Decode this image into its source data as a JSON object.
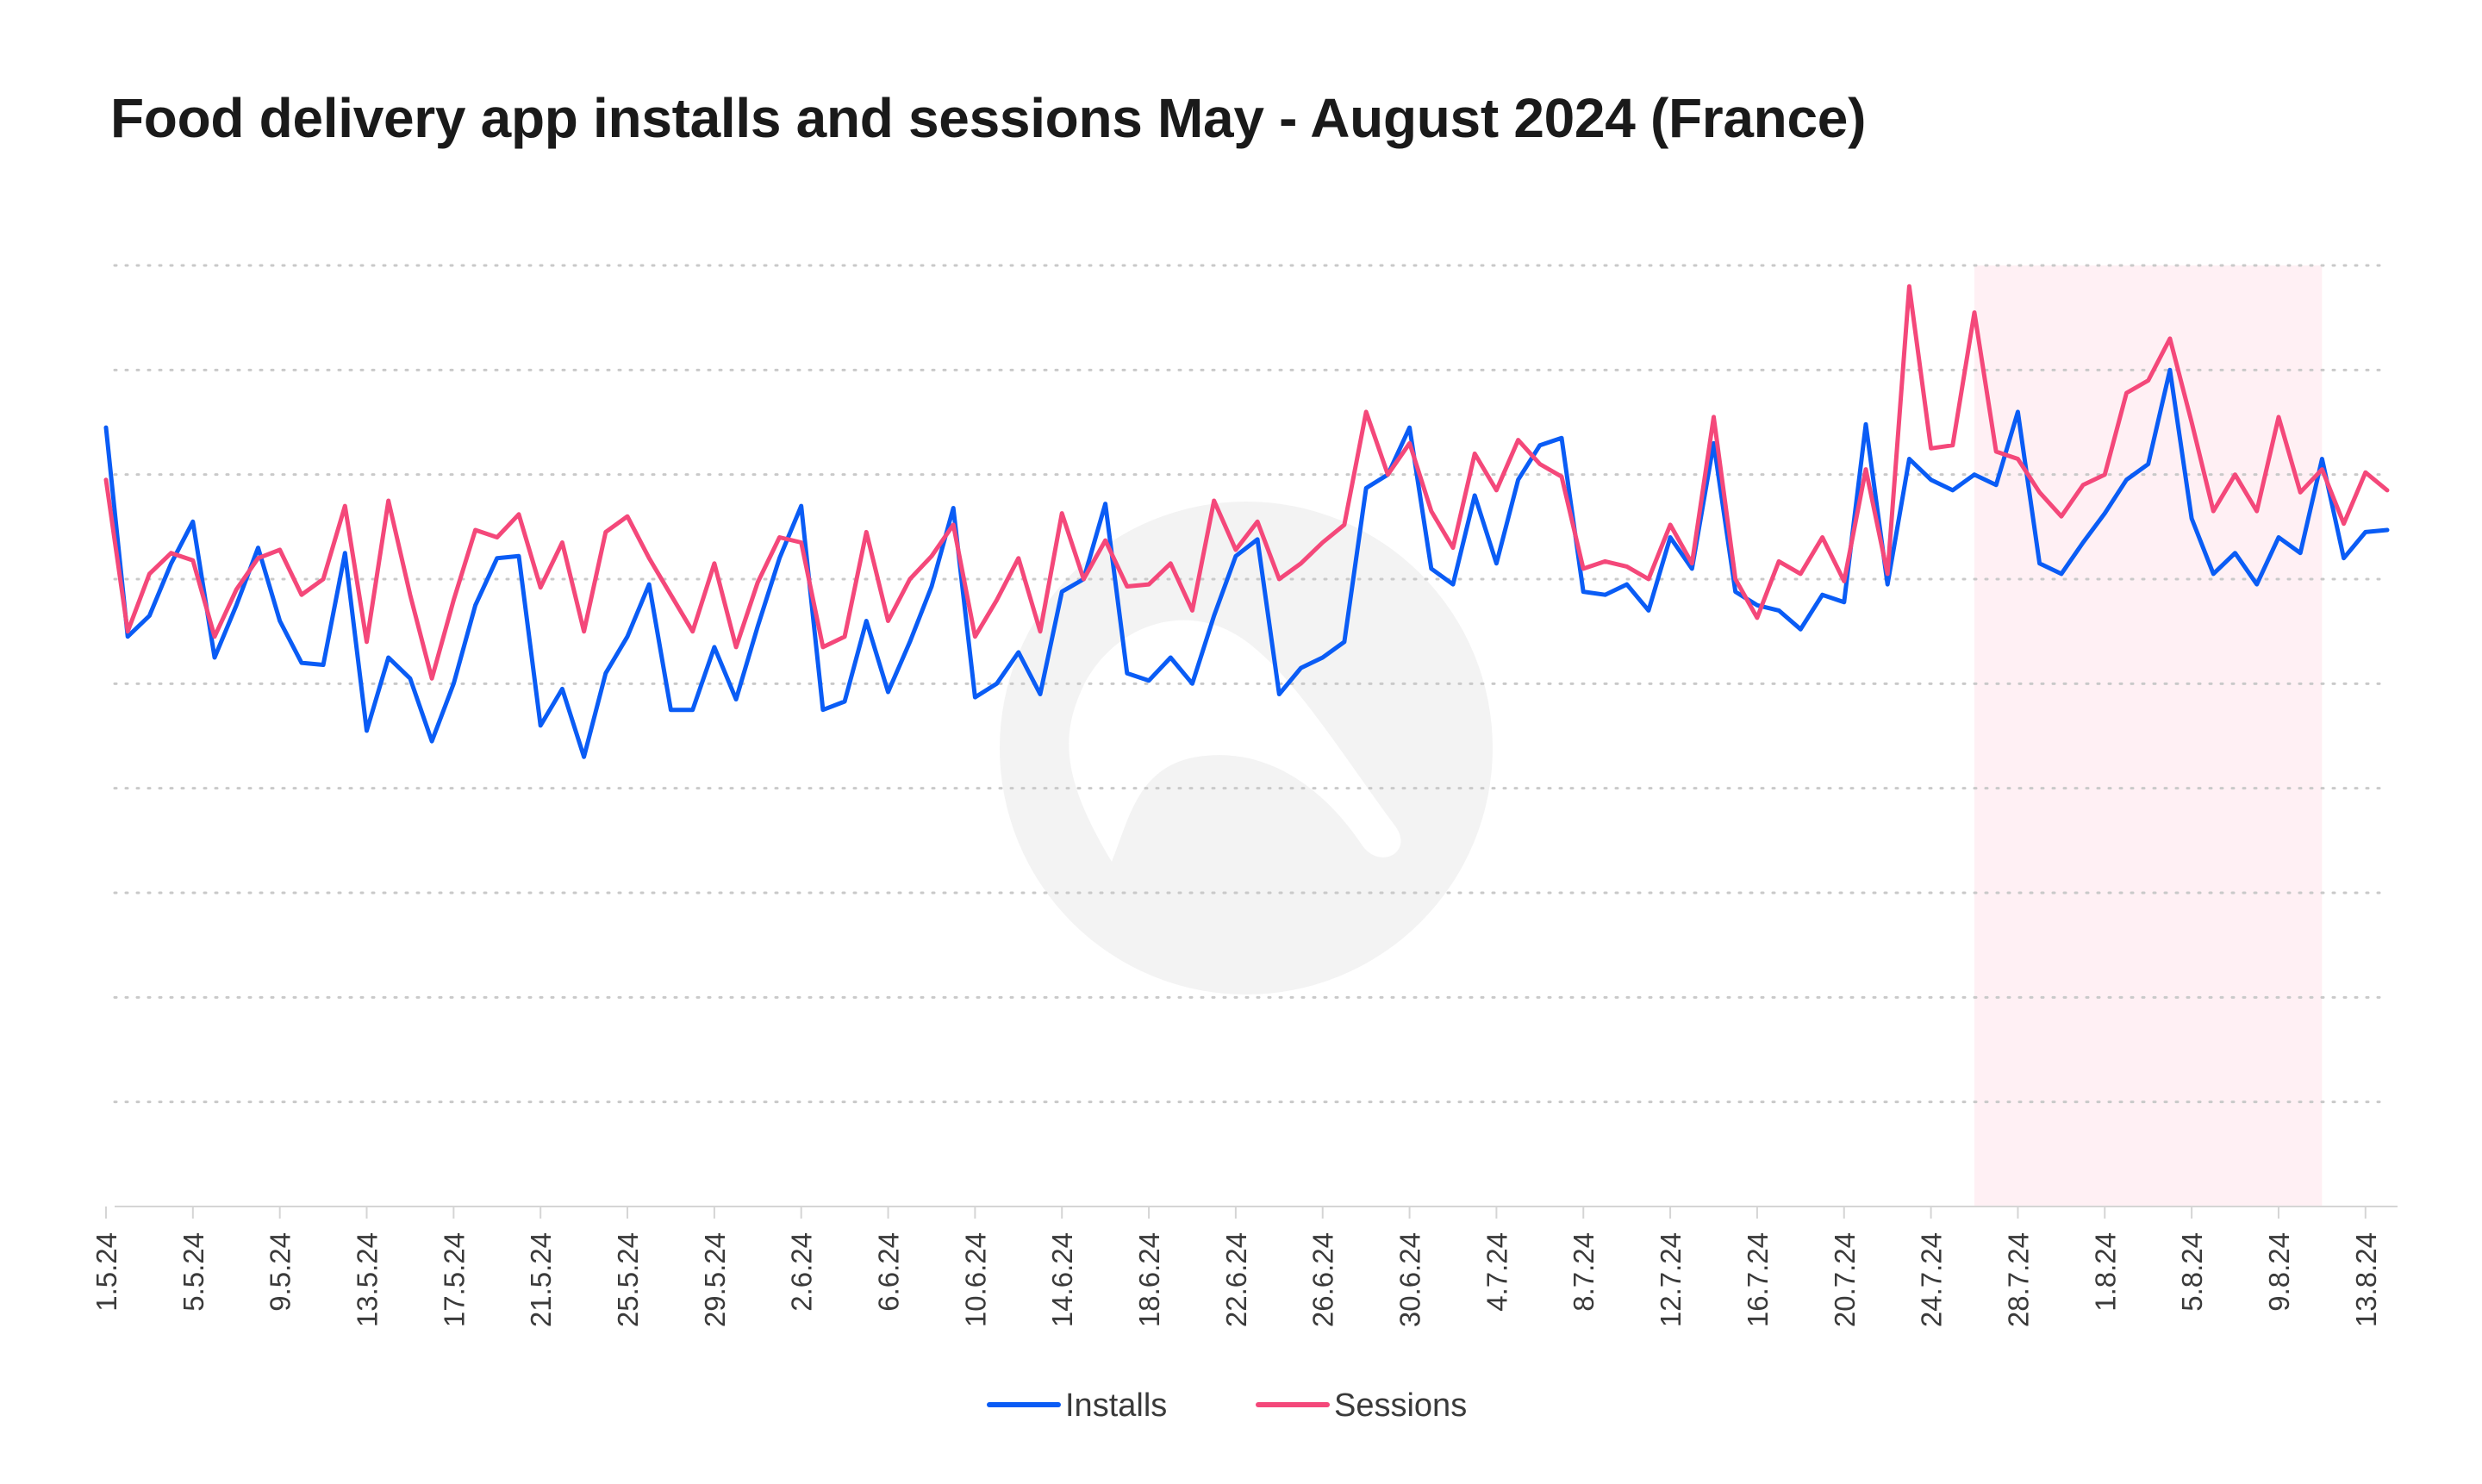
{
  "chart_data": {
    "type": "line",
    "title": "Food delivery app installs and sessions May - August 2024 (France)",
    "xlabel": "",
    "ylabel": "",
    "grid": true,
    "legend_position": "bottom",
    "x": [
      "1.5.24",
      "2.5.24",
      "3.5.24",
      "4.5.24",
      "5.5.24",
      "6.5.24",
      "7.5.24",
      "8.5.24",
      "9.5.24",
      "10.5.24",
      "11.5.24",
      "12.5.24",
      "13.5.24",
      "14.5.24",
      "15.5.24",
      "16.5.24",
      "17.5.24",
      "18.5.24",
      "19.5.24",
      "20.5.24",
      "21.5.24",
      "22.5.24",
      "23.5.24",
      "24.5.24",
      "25.5.24",
      "26.5.24",
      "27.5.24",
      "28.5.24",
      "29.5.24",
      "30.5.24",
      "31.5.24",
      "1.6.24",
      "2.6.24",
      "3.6.24",
      "4.6.24",
      "5.6.24",
      "6.6.24",
      "7.6.24",
      "8.6.24",
      "9.6.24",
      "10.6.24",
      "11.6.24",
      "12.6.24",
      "13.6.24",
      "14.6.24",
      "15.6.24",
      "16.6.24",
      "17.6.24",
      "18.6.24",
      "19.6.24",
      "20.6.24",
      "21.6.24",
      "22.6.24",
      "23.6.24",
      "24.6.24",
      "25.6.24",
      "26.6.24",
      "27.6.24",
      "28.6.24",
      "29.6.24",
      "30.6.24",
      "1.7.24",
      "2.7.24",
      "3.7.24",
      "4.7.24",
      "5.7.24",
      "6.7.24",
      "7.7.24",
      "8.7.24",
      "9.7.24",
      "10.7.24",
      "11.7.24",
      "12.7.24",
      "13.7.24",
      "14.7.24",
      "15.7.24",
      "16.7.24",
      "17.7.24",
      "18.7.24",
      "19.7.24",
      "20.7.24",
      "21.7.24",
      "22.7.24",
      "23.7.24",
      "24.7.24",
      "25.7.24",
      "26.7.24",
      "27.7.24",
      "28.7.24",
      "29.7.24",
      "30.7.24",
      "31.7.24",
      "1.8.24",
      "2.8.24",
      "3.8.24",
      "4.8.24",
      "5.8.24",
      "6.8.24",
      "7.8.24",
      "8.8.24",
      "9.8.24",
      "10.8.24",
      "11.8.24",
      "12.8.24",
      "13.8.24",
      "14.8.24"
    ],
    "x_tick_labels": [
      "1.5.24",
      "5.5.24",
      "9.5.24",
      "13.5.24",
      "17.5.24",
      "21.5.24",
      "25.5.24",
      "29.5.24",
      "2.6.24",
      "6.6.24",
      "10.6.24",
      "14.6.24",
      "18.6.24",
      "22.6.24",
      "26.6.24",
      "30.6.24",
      "4.7.24",
      "8.7.24",
      "12.7.24",
      "16.7.24",
      "20.7.24",
      "24.7.24",
      "28.7.24",
      "1.8.24",
      "5.8.24",
      "9.8.24",
      "13.8.24"
    ],
    "ylim": [
      0,
      9
    ],
    "y_gridlines": [
      0,
      1,
      2,
      3,
      4,
      5,
      6,
      7,
      8,
      9
    ],
    "y_tick_labels_shown": false,
    "highlight_x_range": [
      "26.7.24",
      "11.8.24"
    ],
    "series": [
      {
        "name": "Installs",
        "color": "#0a5cf5",
        "values": [
          7.45,
          5.45,
          5.65,
          6.15,
          6.55,
          5.25,
          5.75,
          6.3,
          5.6,
          5.2,
          5.18,
          6.25,
          4.55,
          5.25,
          5.05,
          4.45,
          5.0,
          5.75,
          6.2,
          6.22,
          4.6,
          4.95,
          4.3,
          5.1,
          5.45,
          5.95,
          4.75,
          4.75,
          5.35,
          4.85,
          5.55,
          6.2,
          6.7,
          4.75,
          4.83,
          5.6,
          4.92,
          5.4,
          5.93,
          6.68,
          4.87,
          5.0,
          5.3,
          4.9,
          5.88,
          6.0,
          6.72,
          5.1,
          5.03,
          5.25,
          5.0,
          5.65,
          6.22,
          6.38,
          4.9,
          5.15,
          5.25,
          5.4,
          6.87,
          7.0,
          7.45,
          6.1,
          5.95,
          6.8,
          6.15,
          6.95,
          7.28,
          7.35,
          5.88,
          5.85,
          5.95,
          5.7,
          6.4,
          6.1,
          7.3,
          5.88,
          5.75,
          5.7,
          5.52,
          5.85,
          5.78,
          7.48,
          5.95,
          7.15,
          6.95,
          6.85,
          7.0,
          6.9,
          7.6,
          6.15,
          6.05,
          6.35,
          6.63,
          6.95,
          7.1,
          8.0,
          6.58,
          6.05,
          6.25,
          5.95,
          6.4,
          6.25,
          7.15,
          6.2,
          6.45,
          6.47
        ]
      },
      {
        "name": "Sessions",
        "color": "#f4487a",
        "values": [
          6.95,
          5.5,
          6.05,
          6.25,
          6.18,
          5.45,
          5.9,
          6.2,
          6.28,
          5.85,
          6.0,
          6.7,
          5.4,
          6.75,
          5.85,
          5.05,
          5.8,
          6.47,
          6.4,
          6.62,
          5.92,
          6.35,
          5.5,
          6.45,
          6.6,
          6.2,
          5.85,
          5.5,
          6.15,
          5.35,
          5.97,
          6.4,
          6.35,
          5.35,
          5.45,
          6.45,
          5.6,
          6.0,
          6.22,
          6.52,
          5.45,
          5.8,
          6.2,
          5.5,
          6.63,
          6.0,
          6.37,
          5.93,
          5.95,
          6.15,
          5.7,
          6.75,
          6.28,
          6.55,
          6.0,
          6.15,
          6.35,
          6.52,
          7.6,
          7.0,
          7.3,
          6.65,
          6.3,
          7.2,
          6.85,
          7.33,
          7.1,
          6.98,
          6.1,
          6.17,
          6.12,
          6.0,
          6.52,
          6.15,
          7.55,
          6.0,
          5.63,
          6.17,
          6.05,
          6.4,
          5.98,
          7.05,
          6.05,
          8.8,
          7.25,
          7.28,
          8.55,
          7.22,
          7.15,
          6.83,
          6.6,
          6.9,
          7.0,
          7.78,
          7.9,
          8.3,
          7.5,
          6.65,
          7.0,
          6.65,
          7.55,
          6.83,
          7.05,
          6.53,
          7.02,
          6.85
        ]
      }
    ]
  }
}
